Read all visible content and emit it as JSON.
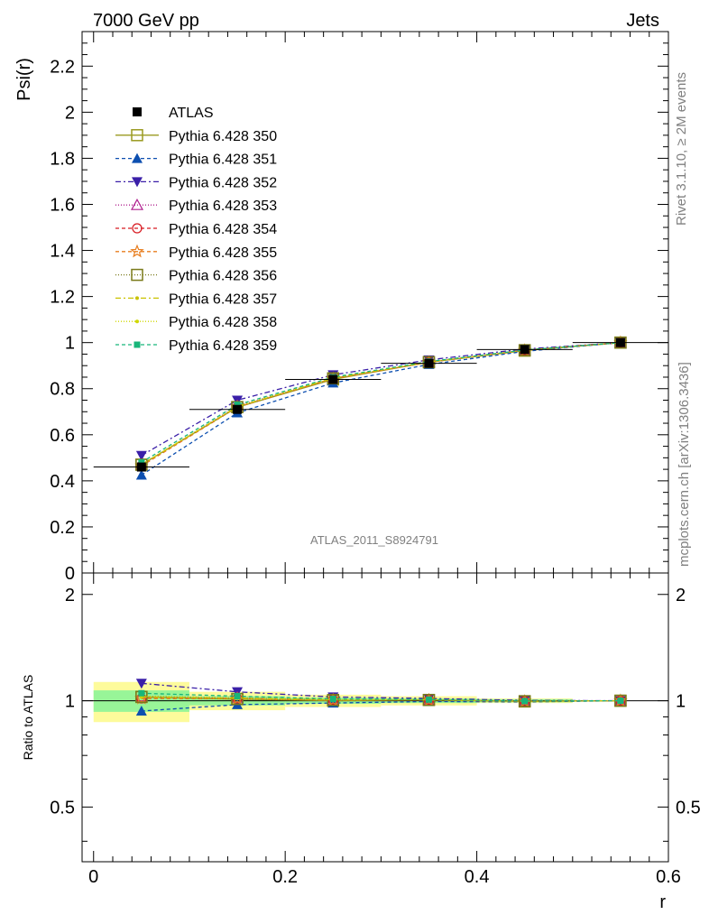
{
  "header": {
    "left": "7000 GeV pp",
    "right": "Jets"
  },
  "side_text": {
    "top": "Rivet 3.1.10, ≥ 2M events",
    "bottom": "mcplots.cern.ch [arXiv:1306.3436]"
  },
  "analysis_label": "ATLAS_2011_S8924791",
  "colors": {
    "atlas": "#000000",
    "s350": "#9a9a20",
    "s351": "#0d4fb0",
    "s352": "#3a1fa8",
    "s353": "#b0208f",
    "s354": "#d81b22",
    "s355": "#e87d1e",
    "s356": "#7a7a1a",
    "s357": "#c9c200",
    "s358": "#cfd800",
    "s359": "#18b67a",
    "band_green": "#98f598",
    "band_yellow": "#fdfb9b"
  },
  "chart_data": [
    {
      "type": "line",
      "ylabel": "Psi(r)",
      "xlim": [
        -0.012,
        0.6
      ],
      "ylim": [
        0,
        2.35
      ],
      "yticks": [
        "0",
        "0.2",
        "0.4",
        "0.6",
        "0.8",
        "1",
        "1.2",
        "1.4",
        "1.6",
        "1.8",
        "2",
        "2.2"
      ],
      "x": [
        0.05,
        0.15,
        0.25,
        0.35,
        0.45,
        0.55
      ],
      "series": [
        {
          "name": "ATLAS",
          "key": "atlas",
          "values": [
            0.46,
            0.71,
            0.84,
            0.91,
            0.97,
            1.0
          ]
        },
        {
          "name": "Pythia 6.428 350",
          "key": "s350",
          "values": [
            0.47,
            0.72,
            0.84,
            0.915,
            0.965,
            1.0
          ]
        },
        {
          "name": "Pythia 6.428 351",
          "key": "s351",
          "values": [
            0.425,
            0.695,
            0.825,
            0.905,
            0.962,
            1.0
          ]
        },
        {
          "name": "Pythia 6.428 352",
          "key": "s352",
          "values": [
            0.51,
            0.75,
            0.86,
            0.925,
            0.972,
            1.0
          ]
        },
        {
          "name": "Pythia 6.428 353",
          "key": "s353",
          "values": [
            0.47,
            0.725,
            0.845,
            0.915,
            0.967,
            1.0
          ]
        },
        {
          "name": "Pythia 6.428 354",
          "key": "s354",
          "values": [
            0.465,
            0.72,
            0.845,
            0.915,
            0.967,
            1.0
          ]
        },
        {
          "name": "Pythia 6.428 355",
          "key": "s355",
          "values": [
            0.465,
            0.72,
            0.843,
            0.914,
            0.966,
            1.0
          ]
        },
        {
          "name": "Pythia 6.428 356",
          "key": "s356",
          "values": [
            0.47,
            0.72,
            0.845,
            0.915,
            0.967,
            1.0
          ]
        },
        {
          "name": "Pythia 6.428 357",
          "key": "s357",
          "values": [
            0.47,
            0.722,
            0.846,
            0.916,
            0.967,
            1.0
          ]
        },
        {
          "name": "Pythia 6.428 358",
          "key": "s358",
          "values": [
            0.472,
            0.723,
            0.846,
            0.916,
            0.967,
            1.0
          ]
        },
        {
          "name": "Pythia 6.428 359",
          "key": "s359",
          "values": [
            0.48,
            0.73,
            0.85,
            0.918,
            0.968,
            1.0
          ]
        }
      ],
      "legend": "top-left"
    },
    {
      "type": "line",
      "ylabel": "Ratio to ATLAS",
      "xlabel": "r",
      "ylim": [
        0.35,
        2.3
      ],
      "log_y": true,
      "yticks": [
        "0.5",
        "1",
        "2"
      ],
      "xticks": [
        "0",
        "0.2",
        "0.4",
        "0.6"
      ],
      "x": [
        0.05,
        0.15,
        0.25,
        0.35,
        0.45,
        0.55
      ],
      "bands": {
        "green_half_width": [
          0.07,
          0.03,
          0.02,
          0.015,
          0.01,
          0.0
        ],
        "yellow_half_width": [
          0.13,
          0.06,
          0.04,
          0.03,
          0.015,
          0.0
        ]
      },
      "series": [
        {
          "name": "Pythia 6.428 350",
          "key": "s350",
          "values": [
            1.025,
            1.01,
            1.0,
            1.005,
            0.995,
            1.0
          ]
        },
        {
          "name": "Pythia 6.428 351",
          "key": "s351",
          "values": [
            0.935,
            0.975,
            0.985,
            0.995,
            0.992,
            1.0
          ]
        },
        {
          "name": "Pythia 6.428 352",
          "key": "s352",
          "values": [
            1.12,
            1.06,
            1.025,
            1.015,
            1.002,
            1.0
          ]
        },
        {
          "name": "Pythia 6.428 353",
          "key": "s353",
          "values": [
            1.03,
            1.02,
            1.006,
            1.005,
            0.997,
            1.0
          ]
        },
        {
          "name": "Pythia 6.428 354",
          "key": "s354",
          "values": [
            1.015,
            1.015,
            1.006,
            1.005,
            0.997,
            1.0
          ]
        },
        {
          "name": "Pythia 6.428 355",
          "key": "s355",
          "values": [
            1.015,
            1.012,
            1.004,
            1.004,
            0.996,
            1.0
          ]
        },
        {
          "name": "Pythia 6.428 356",
          "key": "s356",
          "values": [
            1.025,
            1.012,
            1.005,
            1.005,
            0.997,
            1.0
          ]
        },
        {
          "name": "Pythia 6.428 357",
          "key": "s357",
          "values": [
            1.025,
            1.017,
            1.007,
            1.006,
            0.997,
            1.0
          ]
        },
        {
          "name": "Pythia 6.428 358",
          "key": "s358",
          "values": [
            1.03,
            1.018,
            1.007,
            1.006,
            0.997,
            1.0
          ]
        },
        {
          "name": "Pythia 6.428 359",
          "key": "s359",
          "values": [
            1.05,
            1.03,
            1.012,
            1.008,
            0.998,
            1.0
          ]
        }
      ]
    }
  ]
}
